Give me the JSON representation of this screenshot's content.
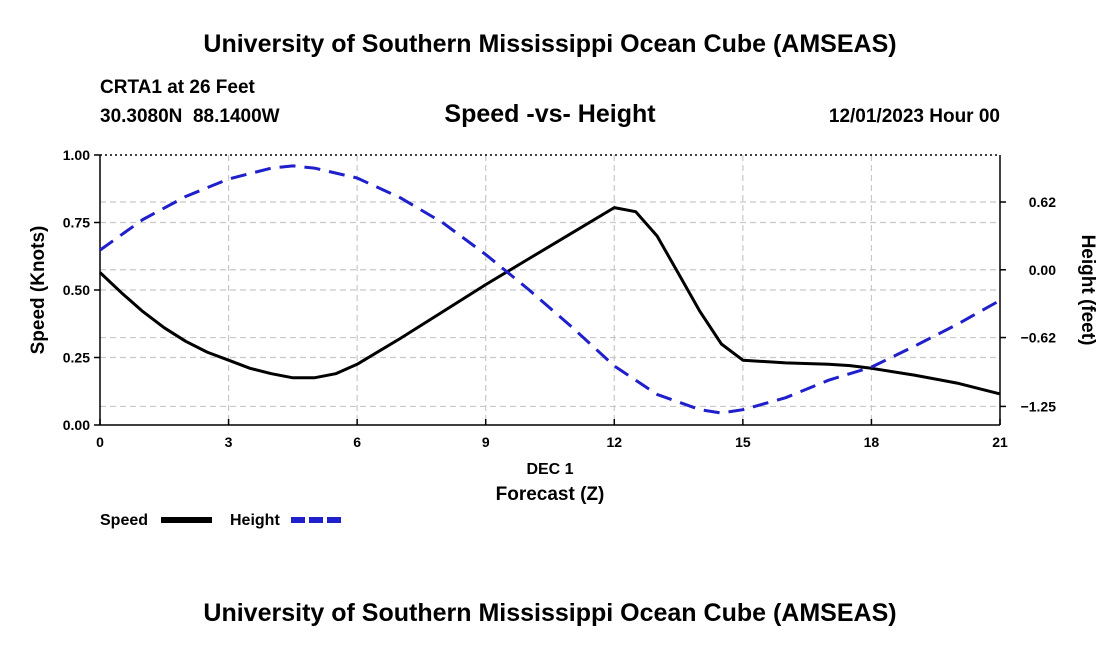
{
  "header": {
    "title": "University of Southern Mississippi Ocean Cube (AMSEAS)",
    "station": "CRTA1 at 26 Feet",
    "coords": "30.3080N  88.1400W",
    "subtitle": "Speed -vs- Height",
    "date": "12/01/2023 Hour 00"
  },
  "footer": {
    "title": "University of Southern Mississippi Ocean Cube (AMSEAS)"
  },
  "chart_data": {
    "type": "line",
    "title": "Speed -vs- Height",
    "xlabel": "Forecast (Z)",
    "xlabel_date": "DEC 1",
    "ylabel": "Speed (Knots)",
    "y2label": "Height (feet)",
    "xlim": [
      0,
      21
    ],
    "ylim": [
      0,
      1
    ],
    "y2lim": [
      -1.42,
      1.05
    ],
    "grid": true,
    "xticks": [
      0,
      3,
      6,
      9,
      12,
      15,
      18,
      21
    ],
    "xtick_labels": [
      "0",
      "3",
      "6",
      "9",
      "12",
      "15",
      "18",
      "21"
    ],
    "yticks": [
      0,
      0.25,
      0.5,
      0.75,
      1.0
    ],
    "ytick_labels": [
      "0.00",
      "0.25",
      "0.50",
      "0.75",
      "1.00"
    ],
    "y2ticks": [
      -1.25,
      -0.62,
      0.0,
      0.62
    ],
    "y2tick_labels": [
      "−1.25",
      "−0.62",
      "0.00",
      "0.62"
    ],
    "legend_position": "bottom-left",
    "series": [
      {
        "name": "Speed",
        "axis": "left",
        "color": "#000000",
        "style": "solid",
        "x": [
          0,
          0.5,
          1,
          1.5,
          2,
          2.5,
          3,
          3.5,
          4,
          4.5,
          5,
          5.5,
          6,
          7,
          8,
          9,
          10,
          11,
          12,
          12.5,
          13,
          13.5,
          14,
          14.5,
          15,
          16,
          17,
          17.5,
          18,
          19,
          20,
          21
        ],
        "values": [
          0.565,
          0.49,
          0.42,
          0.36,
          0.31,
          0.27,
          0.24,
          0.21,
          0.19,
          0.175,
          0.175,
          0.19,
          0.225,
          0.32,
          0.42,
          0.52,
          0.615,
          0.71,
          0.805,
          0.79,
          0.7,
          0.56,
          0.42,
          0.3,
          0.24,
          0.23,
          0.225,
          0.22,
          0.21,
          0.185,
          0.155,
          0.115
        ]
      },
      {
        "name": "Height",
        "axis": "right",
        "color": "#1f1fcc",
        "style": "dashed",
        "x": [
          0,
          1,
          2,
          3,
          4,
          4.5,
          5,
          6,
          7,
          8,
          9,
          10,
          11,
          12,
          13,
          14,
          14.5,
          15,
          16,
          17,
          18,
          19,
          20,
          21
        ],
        "values": [
          0.18,
          0.46,
          0.67,
          0.83,
          0.93,
          0.95,
          0.93,
          0.84,
          0.66,
          0.43,
          0.14,
          -0.18,
          -0.52,
          -0.88,
          -1.14,
          -1.28,
          -1.31,
          -1.28,
          -1.17,
          -1.01,
          -0.89,
          -0.7,
          -0.5,
          -0.28
        ]
      }
    ]
  }
}
